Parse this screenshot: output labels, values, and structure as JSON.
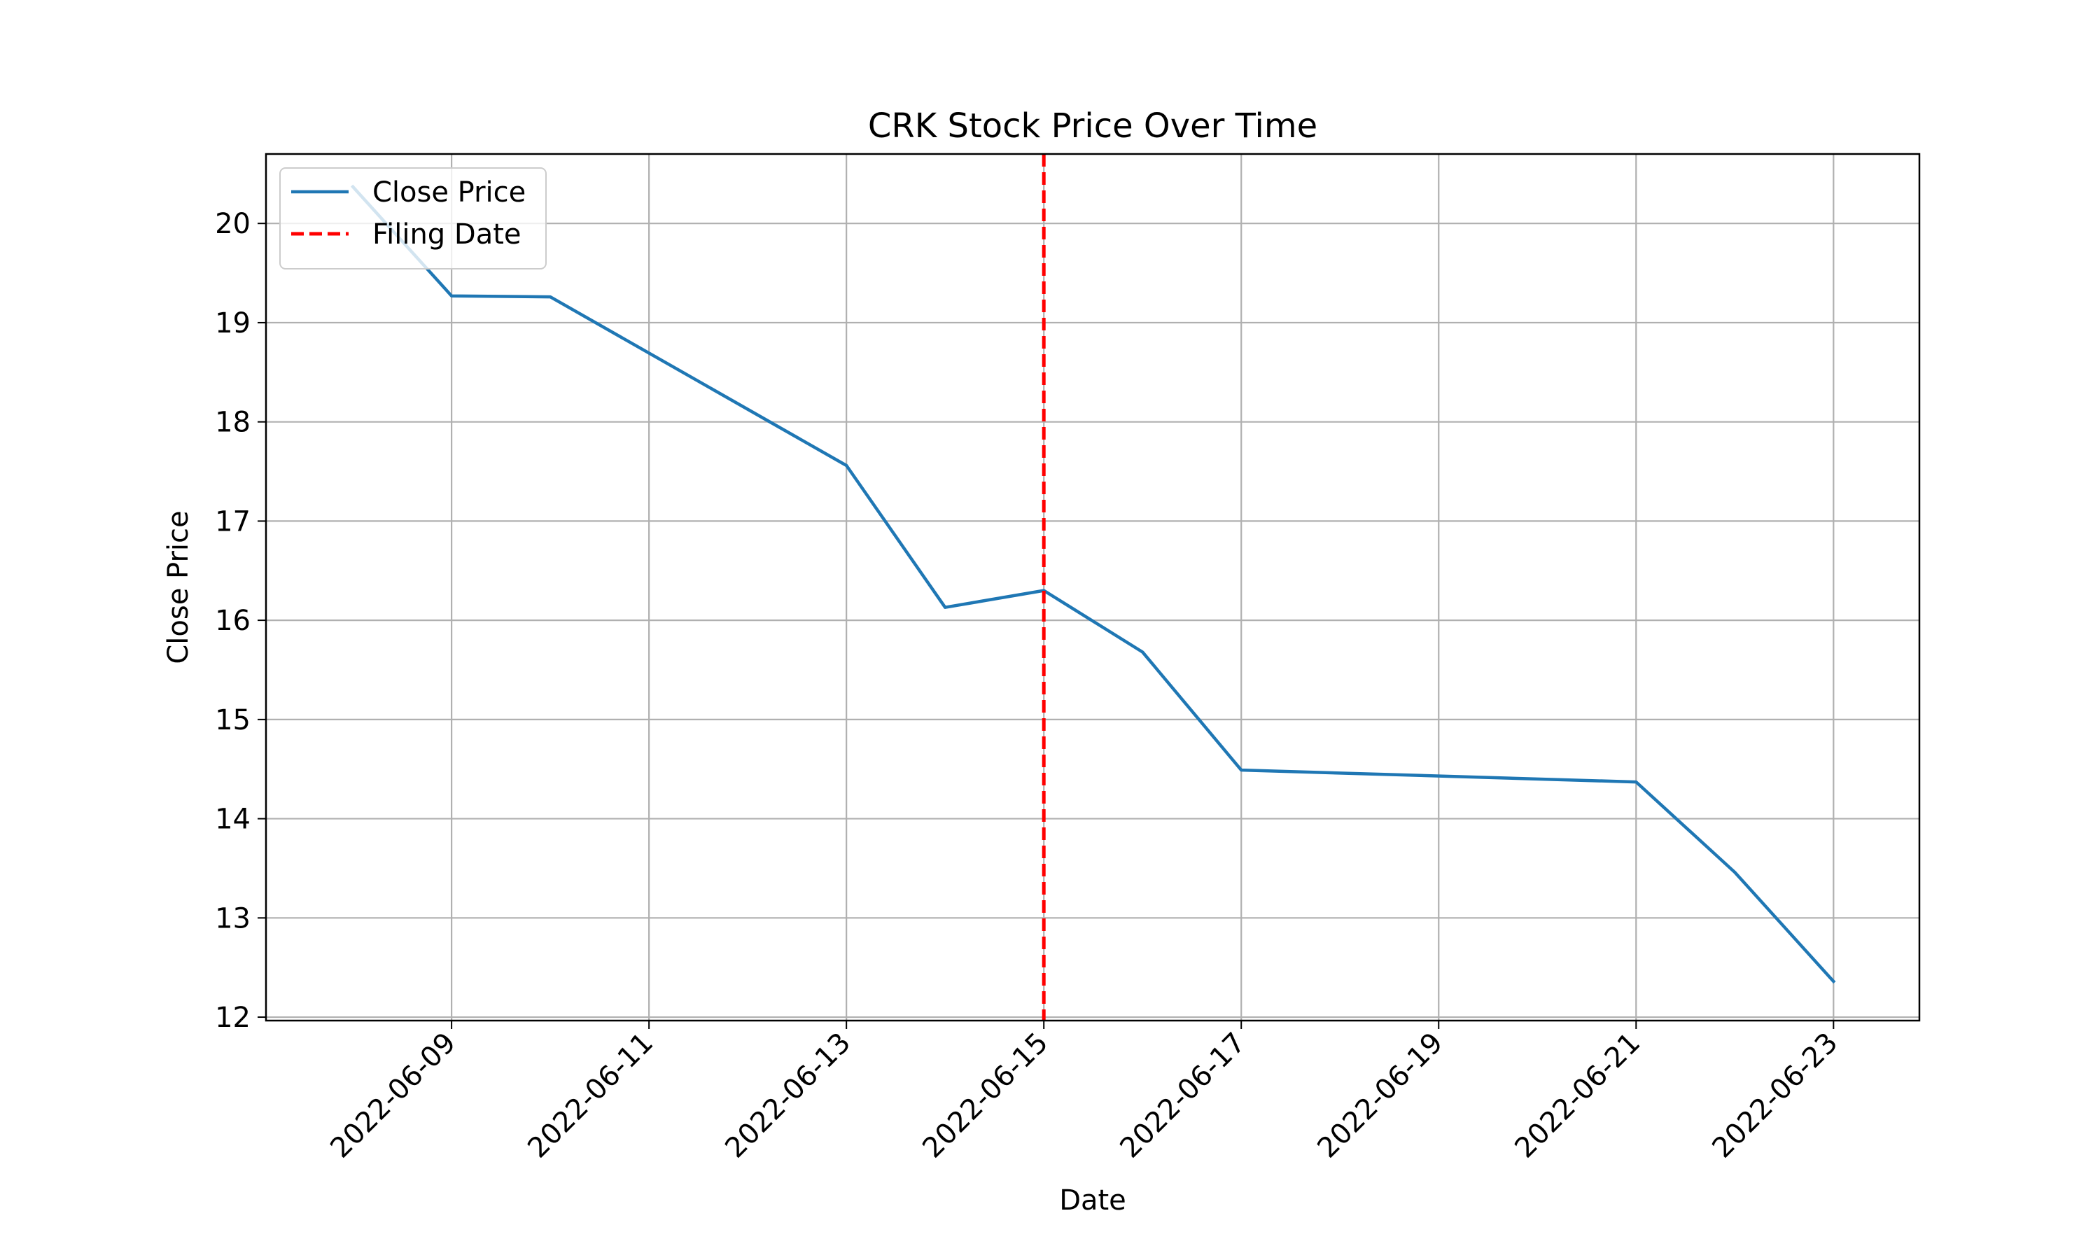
{
  "chart_data": {
    "type": "line",
    "title": "CRK Stock Price Over Time",
    "xlabel": "Date",
    "ylabel": "Close Price",
    "grid": true,
    "legend_position": "upper-left",
    "xlim": [
      "2022-06-07",
      "2022-06-23"
    ],
    "ylim": [
      12,
      20.7
    ],
    "x_ticks": [
      "2022-06-09",
      "2022-06-11",
      "2022-06-13",
      "2022-06-15",
      "2022-06-17",
      "2022-06-19",
      "2022-06-21",
      "2022-06-23"
    ],
    "y_ticks": [
      12,
      13,
      14,
      15,
      16,
      17,
      18,
      19,
      20
    ],
    "series": [
      {
        "name": "Close Price",
        "color": "#1f77b4",
        "style": "solid",
        "x": [
          "2022-06-08",
          "2022-06-09",
          "2022-06-10",
          "2022-06-13",
          "2022-06-14",
          "2022-06-15",
          "2022-06-16",
          "2022-06-17",
          "2022-06-21",
          "2022-06-22",
          "2022-06-23"
        ],
        "values": [
          20.37,
          19.27,
          19.26,
          17.56,
          16.13,
          16.3,
          15.68,
          14.49,
          14.37,
          13.46,
          12.36
        ]
      }
    ],
    "vertical_lines": [
      {
        "name": "Filing Date",
        "x": "2022-06-15",
        "color": "#ff0000",
        "style": "dashed"
      }
    ]
  }
}
